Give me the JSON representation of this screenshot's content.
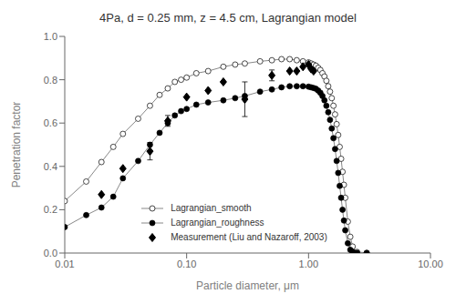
{
  "chart_data": {
    "type": "line",
    "title": "4Pa, d = 0.25 mm, z = 4.5 cm, Lagrangian model",
    "xlabel": "Particle diameter, μm",
    "ylabel": "Penetration factor",
    "log": "x",
    "grid": false,
    "legend": "lower center",
    "xlim": [
      0.01,
      10.0
    ],
    "ylim": [
      0.0,
      1.0
    ],
    "xticks": [
      {
        "value": 0.01,
        "label": "0.01"
      },
      {
        "value": 0.1,
        "label": "0.10"
      },
      {
        "value": 1.0,
        "label": "1.00"
      },
      {
        "value": 10.0,
        "label": "10.00"
      }
    ],
    "yticks": [
      {
        "value": 0.0,
        "label": "0.0"
      },
      0.2,
      0.4,
      0.6,
      0.8,
      {
        "value": 1.0,
        "label": "1.0"
      }
    ],
    "series": [
      {
        "name": "Lagrangian_smooth",
        "type": "line",
        "color": "#888888",
        "marker": "open_circle",
        "line_style": "solid",
        "x": [
          0.01,
          0.015,
          0.02,
          0.025,
          0.03,
          0.04,
          0.05,
          0.06,
          0.07,
          0.08,
          0.09,
          0.1,
          0.12,
          0.15,
          0.2,
          0.25,
          0.3,
          0.4,
          0.5,
          0.6,
          0.7,
          0.8,
          0.9,
          1.0,
          1.05,
          1.1,
          1.15,
          1.2,
          1.25,
          1.3,
          1.35,
          1.4,
          1.45,
          1.5,
          1.55,
          1.6,
          1.65,
          1.7,
          1.75,
          1.8,
          1.85,
          1.9,
          1.95,
          2.0,
          2.1,
          2.2,
          2.3,
          2.5,
          3.0
        ],
        "values": [
          0.24,
          0.33,
          0.42,
          0.49,
          0.55,
          0.62,
          0.68,
          0.73,
          0.76,
          0.79,
          0.8,
          0.81,
          0.83,
          0.84,
          0.86,
          0.87,
          0.875,
          0.885,
          0.89,
          0.895,
          0.895,
          0.89,
          0.885,
          0.88,
          0.875,
          0.87,
          0.865,
          0.855,
          0.845,
          0.83,
          0.815,
          0.795,
          0.77,
          0.745,
          0.715,
          0.68,
          0.64,
          0.595,
          0.545,
          0.49,
          0.435,
          0.375,
          0.315,
          0.255,
          0.145,
          0.075,
          0.03,
          0.005,
          0.001
        ]
      },
      {
        "name": "Lagrangian_roughness",
        "type": "line",
        "color": "#888888",
        "marker": "circle",
        "line_style": "solid",
        "x": [
          0.01,
          0.015,
          0.02,
          0.025,
          0.03,
          0.04,
          0.05,
          0.06,
          0.07,
          0.08,
          0.09,
          0.1,
          0.12,
          0.15,
          0.2,
          0.25,
          0.3,
          0.4,
          0.5,
          0.6,
          0.7,
          0.8,
          0.9,
          1.0,
          1.05,
          1.1,
          1.15,
          1.2,
          1.25,
          1.3,
          1.35,
          1.4,
          1.45,
          1.5,
          1.55,
          1.6,
          1.65,
          1.7,
          1.75,
          1.8,
          1.85,
          1.9,
          1.95,
          2.0,
          2.1,
          2.2,
          2.3,
          2.5,
          3.0
        ],
        "values": [
          0.12,
          0.175,
          0.21,
          0.26,
          0.345,
          0.425,
          0.5,
          0.555,
          0.6,
          0.635,
          0.655,
          0.665,
          0.685,
          0.695,
          0.705,
          0.715,
          0.725,
          0.745,
          0.755,
          0.765,
          0.77,
          0.77,
          0.77,
          0.768,
          0.765,
          0.762,
          0.758,
          0.75,
          0.74,
          0.725,
          0.705,
          0.68,
          0.65,
          0.615,
          0.575,
          0.53,
          0.48,
          0.425,
          0.37,
          0.31,
          0.255,
          0.2,
          0.15,
          0.105,
          0.045,
          0.015,
          0.005,
          0.001,
          0.0
        ]
      },
      {
        "name": "Measurement (Liu and Nazaroff, 2003)",
        "type": "scatter",
        "color": "black",
        "marker": "diamond",
        "line_style": "none",
        "x": [
          0.02,
          0.03,
          0.05,
          0.07,
          0.1,
          0.15,
          0.2,
          0.3,
          0.5,
          0.7,
          0.8,
          0.9,
          1.0,
          1.05,
          1.1
        ],
        "values": [
          0.27,
          0.39,
          0.47,
          0.61,
          0.72,
          0.75,
          0.79,
          0.71,
          0.82,
          0.84,
          0.84,
          0.86,
          0.87,
          0.85,
          0.84
        ],
        "error_low": [
          0.0,
          0.0,
          0.04,
          0.025,
          0.0,
          0.0,
          0.0,
          0.08,
          0.025,
          0.0,
          0.0,
          0.0,
          0.0,
          0.0,
          0.0
        ],
        "error_high": [
          0.0,
          0.0,
          0.04,
          0.025,
          0.0,
          0.0,
          0.0,
          0.08,
          0.025,
          0.0,
          0.0,
          0.0,
          0.0,
          0.0,
          0.0
        ]
      }
    ]
  }
}
